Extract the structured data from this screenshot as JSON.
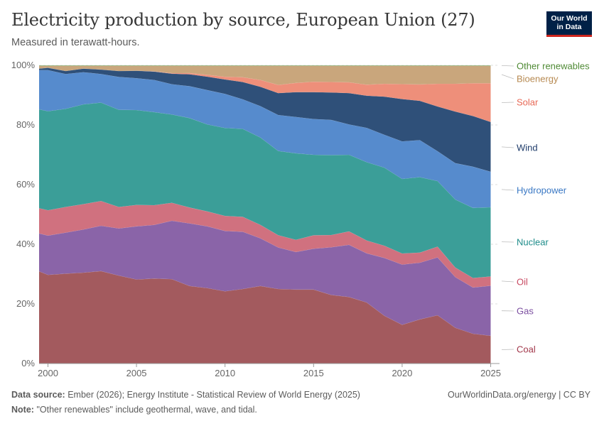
{
  "header": {
    "title": "Electricity production by source, European Union (27)",
    "subtitle": "Measured in terawatt-hours.",
    "logo_line1": "Our World",
    "logo_line2": "in Data"
  },
  "footer": {
    "source_label": "Data source:",
    "source_text": "Ember (2026); Energy Institute - Statistical Review of World Energy (2025)",
    "note_label": "Note:",
    "note_text": "\"Other renewables\" include geothermal, wave, and tidal.",
    "link": "OurWorldinData.org/energy | CC BY"
  },
  "chart_data": {
    "type": "area",
    "stacked": "percent",
    "x": [
      1999,
      2000,
      2001,
      2002,
      2003,
      2004,
      2005,
      2006,
      2007,
      2008,
      2009,
      2010,
      2011,
      2012,
      2013,
      2014,
      2015,
      2016,
      2017,
      2018,
      2019,
      2020,
      2021,
      2022,
      2023,
      2024,
      2025
    ],
    "xlim": [
      1999.5,
      2025.5
    ],
    "xticks": [
      "2000",
      "2005",
      "2010",
      "2015",
      "2020",
      "2025"
    ],
    "xtick_values": [
      2000,
      2005,
      2010,
      2015,
      2020,
      2025
    ],
    "ylim": [
      0,
      100
    ],
    "yticks": [
      "0%",
      "20%",
      "40%",
      "60%",
      "80%",
      "100%"
    ],
    "ytick_values": [
      0,
      20,
      40,
      60,
      80,
      100
    ],
    "grid": "horizontal dashed",
    "legend": "right, inline labels",
    "series": [
      {
        "name": "Coal",
        "color": "#a2559c",
        "fill": "#a35a5e",
        "label_color": "#a2384b",
        "values": [
          31,
          29.8,
          30.2,
          30.5,
          31,
          29.5,
          28.2,
          28.5,
          28.2,
          26,
          25.3,
          24,
          25,
          26,
          25.5,
          24.8,
          24.8,
          23,
          22.3,
          20.5,
          16,
          13,
          14.8,
          16.2,
          12,
          10,
          9.3
        ]
      },
      {
        "name": "Gas",
        "color": "#8c62a8",
        "fill": "#8a64a8",
        "label_color": "#7b4ea0",
        "values": [
          12.7,
          13.2,
          13.8,
          14.5,
          15.2,
          15.8,
          17.8,
          18,
          19.5,
          21,
          20.7,
          20,
          19.2,
          16,
          14.2,
          12.6,
          13.7,
          16,
          17.5,
          16.5,
          19.4,
          20.2,
          19,
          19.4,
          17,
          15.5,
          16.8
        ]
      },
      {
        "name": "Oil",
        "color": "#d0627a",
        "fill": "#d0717f",
        "label_color": "#c84a62",
        "values": [
          8.5,
          8.5,
          8.6,
          8.5,
          8.3,
          7.2,
          7.2,
          6.6,
          6,
          5.3,
          5,
          5,
          5,
          4.5,
          4.2,
          4.1,
          4.5,
          4.1,
          4.5,
          4.3,
          4.1,
          3.7,
          3.4,
          3.6,
          3.2,
          3.2,
          3.1
        ]
      },
      {
        "name": "Nuclear",
        "color": "#389c94",
        "fill": "#3b9e98",
        "label_color": "#1e8c8a",
        "values": [
          33.2,
          33.3,
          33,
          33.5,
          33,
          32.6,
          31.8,
          31.2,
          29.5,
          30,
          29.2,
          29.2,
          29.5,
          29.3,
          28.8,
          29,
          27,
          26.8,
          25.7,
          26.3,
          26.2,
          25,
          25.3,
          22,
          22.8,
          23.5,
          23.2
        ]
      },
      {
        "name": "Hydropower",
        "color": "#548dd0",
        "fill": "#568bcd",
        "label_color": "#3a78c4",
        "values": [
          13.2,
          13.8,
          11.7,
          10.8,
          9.6,
          11,
          10.7,
          10.8,
          10.1,
          10.7,
          11.5,
          11.3,
          9.9,
          10.5,
          12.3,
          12.2,
          12,
          11.8,
          10.2,
          11.5,
          11,
          12.6,
          12.4,
          10,
          12.2,
          13.8,
          11.9
        ]
      },
      {
        "name": "Wind",
        "color": "#2e4e7c",
        "fill": "#2f5079",
        "label_color": "#1f3c6a",
        "values": [
          0.5,
          0.8,
          1,
          1.2,
          1.5,
          2,
          2.5,
          2.8,
          3.5,
          4,
          4.5,
          4.8,
          5.8,
          6.5,
          7.5,
          8.3,
          9,
          9.2,
          10.5,
          10.8,
          12.8,
          14.2,
          13.2,
          15,
          17.3,
          17,
          16.7
        ]
      },
      {
        "name": "Solar",
        "color": "#f0907c",
        "fill": "#ee8f7a",
        "label_color": "#e86a57",
        "values": [
          0,
          0,
          0,
          0,
          0,
          0,
          0,
          0.1,
          0.2,
          0.4,
          0.6,
          0.9,
          1.6,
          2.3,
          2.8,
          3.1,
          3.5,
          3.5,
          3.6,
          3.7,
          4.3,
          5,
          5.5,
          7.6,
          9.3,
          11,
          13
        ]
      },
      {
        "name": "Bioenergy",
        "color": "#c9a57a",
        "fill": "#c9a67c",
        "label_color": "#b78a52",
        "values": [
          0.9,
          0.6,
          1.7,
          0.9,
          1.2,
          1.7,
          1.6,
          1.8,
          2.4,
          2.4,
          3,
          3.6,
          3.8,
          4.7,
          6.5,
          5.7,
          5.3,
          5.4,
          5.5,
          6.3,
          6,
          6.1,
          6.2,
          6,
          6,
          5.8,
          5.8
        ]
      },
      {
        "name": "Other renewables",
        "color": "#6f9a5c",
        "fill": "#7aa15f",
        "label_color": "#4f8a35",
        "values": [
          0.2,
          0.2,
          0.2,
          0.2,
          0.2,
          0.2,
          0.2,
          0.2,
          0.2,
          0.2,
          0.2,
          0.2,
          0.2,
          0.2,
          0.2,
          0.2,
          0.2,
          0.2,
          0.2,
          0.2,
          0.2,
          0.2,
          0.2,
          0.2,
          0.2,
          0.2,
          0.2
        ]
      }
    ]
  }
}
